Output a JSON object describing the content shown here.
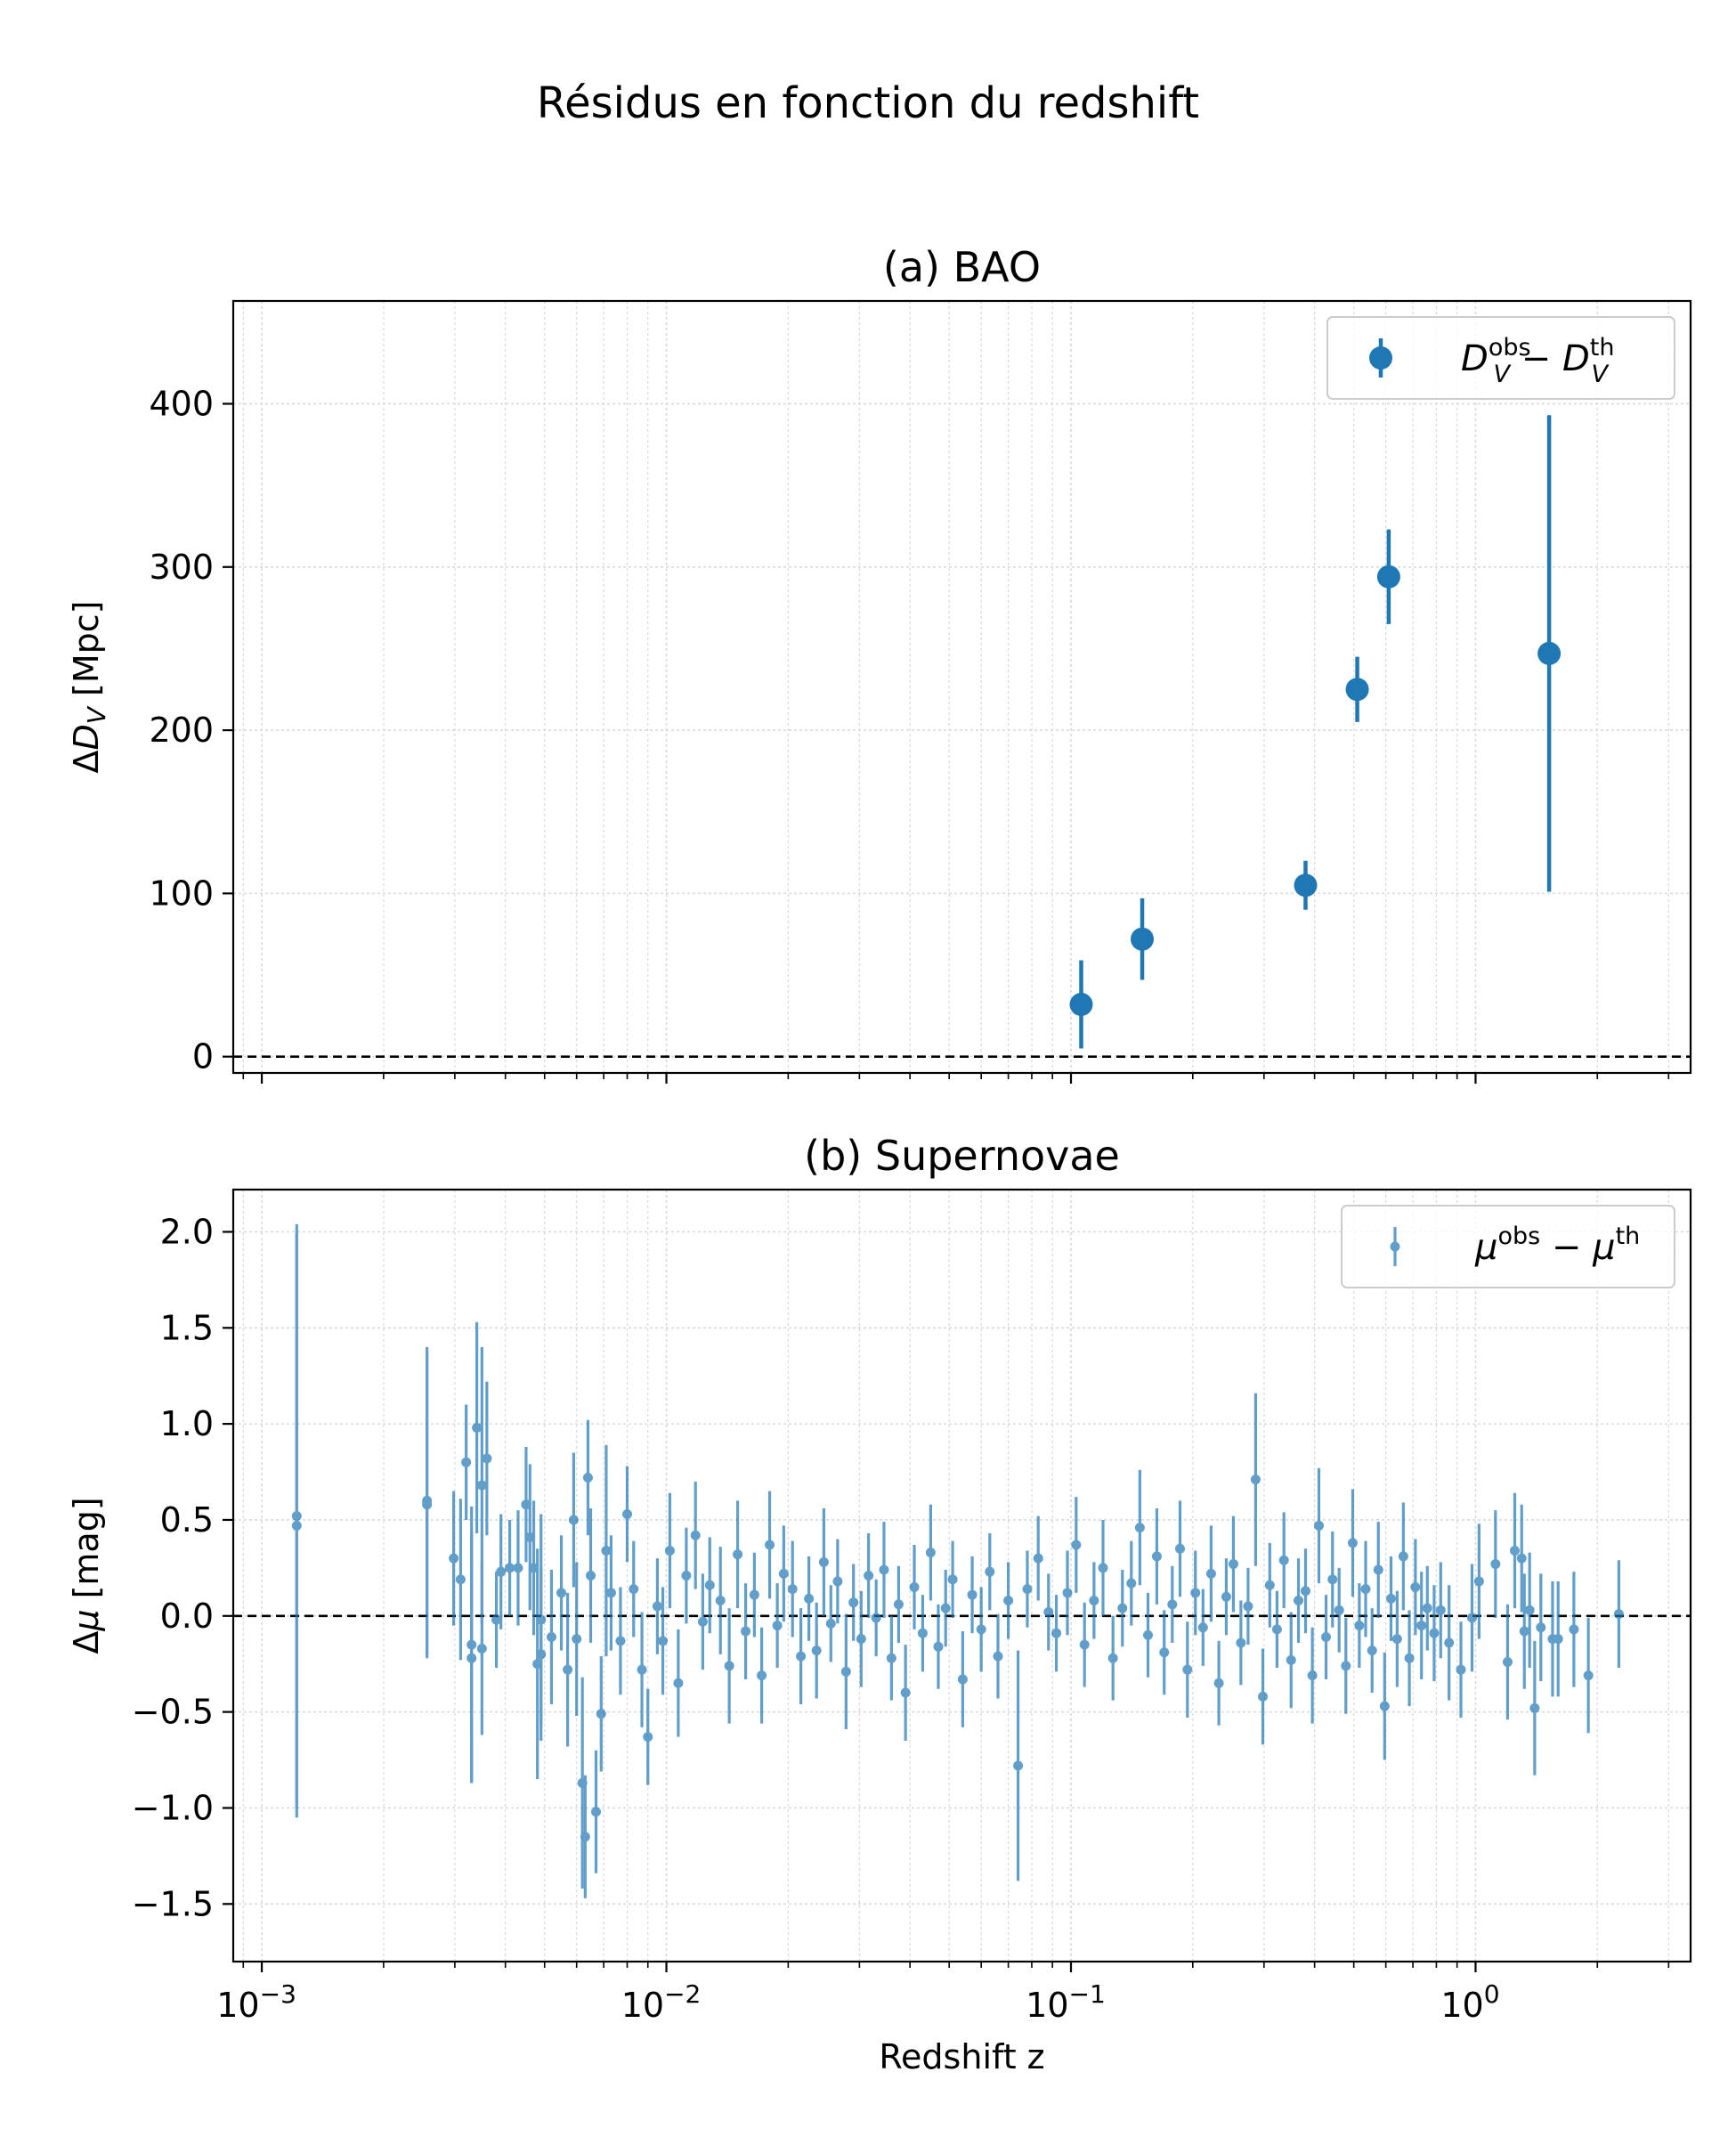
{
  "figure_title": "Résidus en fonction du redshift",
  "x_axis": {
    "label": "Redshift z",
    "scale": "log",
    "range": [
      0.00085,
      3.4
    ],
    "tick_labels": [
      "10−3",
      "10−2",
      "10−1",
      "100"
    ]
  },
  "colors": {
    "series": "#1f77b4",
    "zero_line": "#000000",
    "grid": "#d9d9d9"
  },
  "chart_data": [
    {
      "type": "scatter",
      "panel_title": "(a) BAO",
      "ylabel": "ΔD_V [Mpc]",
      "ylim": [
        -10,
        463
      ],
      "yticks": [
        0,
        100,
        200,
        300,
        400
      ],
      "ytick_labels": [
        "0",
        "100",
        "200",
        "300",
        "400"
      ],
      "grid": true,
      "zero_line": true,
      "legend": {
        "location": "top-right",
        "label": "D_V^obs − D_V^th"
      },
      "series": [
        {
          "name": "D_V^obs − D_V^th",
          "x": [
            0.106,
            0.15,
            0.38,
            0.51,
            0.61,
            1.52
          ],
          "y": [
            32,
            72,
            105,
            225,
            294,
            247
          ],
          "yerr": [
            27,
            25,
            15,
            20,
            29,
            146
          ]
        }
      ]
    },
    {
      "type": "scatter",
      "panel_title": "(b) Supernovae",
      "ylabel": "Δμ [mag]",
      "ylim": [
        -1.8,
        2.22
      ],
      "yticks": [
        -1.5,
        -1.0,
        -0.5,
        0.0,
        0.5,
        1.0,
        1.5,
        2.0
      ],
      "ytick_labels": [
        "−1.5",
        "−1.0",
        "−0.5",
        "0.0",
        "0.5",
        "1.0",
        "1.5",
        "2.0"
      ],
      "grid": true,
      "zero_line": true,
      "legend": {
        "location": "top-right",
        "label": "μ^obs − μ^th"
      },
      "series": [
        {
          "name": "μ^obs − μ^th",
          "x": [
            0.00122,
            0.00122,
            0.00256,
            0.00256,
            0.00298,
            0.0031,
            0.0032,
            0.0033,
            0.0033,
            0.0034,
            0.0035,
            0.0035,
            0.0036,
            0.0038,
            0.0039,
            0.0041,
            0.0043,
            0.0045,
            0.0046,
            0.0047,
            0.0048,
            0.0049,
            0.0049,
            0.0052,
            0.0055,
            0.0057,
            0.0059,
            0.006,
            0.0062,
            0.0063,
            0.0064,
            0.0065,
            0.0067,
            0.0069,
            0.0071,
            0.0073,
            0.0077,
            0.008,
            0.0083,
            0.0087,
            0.009,
            0.0095,
            0.0098,
            0.0102,
            0.0107,
            0.0112,
            0.0118,
            0.0123,
            0.0128,
            0.0136,
            0.0143,
            0.015,
            0.0157,
            0.0165,
            0.0172,
            0.018,
            0.0188,
            0.0195,
            0.0205,
            0.0215,
            0.0225,
            0.0235,
            0.0245,
            0.0255,
            0.0265,
            0.0278,
            0.029,
            0.0303,
            0.0316,
            0.033,
            0.0345,
            0.036,
            0.0375,
            0.039,
            0.041,
            0.043,
            0.045,
            0.047,
            0.049,
            0.051,
            0.054,
            0.057,
            0.06,
            0.063,
            0.066,
            0.07,
            0.074,
            0.078,
            0.083,
            0.088,
            0.092,
            0.098,
            0.103,
            0.108,
            0.114,
            0.12,
            0.127,
            0.134,
            0.141,
            0.148,
            0.155,
            0.163,
            0.17,
            0.178,
            0.186,
            0.194,
            0.203,
            0.212,
            0.222,
            0.232,
            0.242,
            0.252,
            0.263,
            0.274,
            0.286,
            0.298,
            0.31,
            0.323,
            0.336,
            0.35,
            0.365,
            0.38,
            0.395,
            0.41,
            0.427,
            0.443,
            0.46,
            0.478,
            0.497,
            0.516,
            0.535,
            0.555,
            0.575,
            0.596,
            0.618,
            0.64,
            0.663,
            0.686,
            0.71,
            0.735,
            0.76,
            0.79,
            0.82,
            0.86,
            0.92,
            0.98,
            1.02,
            1.12,
            1.2,
            1.25,
            1.3,
            1.32,
            1.36,
            1.4,
            1.45,
            1.55,
            1.6,
            1.75,
            1.9,
            2.26
          ],
          "y": [
            0.52,
            0.47,
            0.6,
            0.58,
            0.3,
            0.19,
            0.8,
            -0.15,
            -0.22,
            0.98,
            0.68,
            -0.17,
            0.82,
            -0.02,
            0.23,
            0.25,
            0.25,
            0.58,
            0.41,
            0.25,
            -0.25,
            -0.2,
            -0.02,
            -0.11,
            0.12,
            -0.28,
            0.5,
            -0.12,
            -0.87,
            -1.15,
            0.72,
            0.21,
            -1.02,
            -0.51,
            0.34,
            0.12,
            -0.13,
            0.53,
            0.14,
            -0.28,
            -0.63,
            0.05,
            -0.13,
            0.34,
            -0.35,
            0.21,
            0.42,
            -0.03,
            0.16,
            0.08,
            -0.26,
            0.32,
            -0.08,
            0.11,
            -0.31,
            0.37,
            -0.05,
            0.22,
            0.14,
            -0.21,
            0.09,
            -0.18,
            0.28,
            -0.04,
            0.18,
            -0.29,
            0.07,
            -0.12,
            0.21,
            -0.01,
            0.24,
            -0.22,
            0.06,
            -0.4,
            0.15,
            -0.09,
            0.33,
            -0.16,
            0.04,
            0.19,
            -0.33,
            0.11,
            -0.07,
            0.23,
            -0.21,
            0.08,
            -0.78,
            0.14,
            0.3,
            0.02,
            -0.09,
            0.12,
            0.37,
            -0.15,
            0.08,
            0.25,
            -0.22,
            0.04,
            0.17,
            0.46,
            -0.1,
            0.31,
            -0.19,
            0.06,
            0.35,
            -0.28,
            0.12,
            -0.06,
            0.22,
            -0.35,
            0.1,
            0.27,
            -0.14,
            0.05,
            0.71,
            -0.42,
            0.16,
            -0.07,
            0.29,
            -0.23,
            0.08,
            0.13,
            -0.31,
            0.47,
            -0.11,
            0.19,
            0.03,
            -0.26,
            0.38,
            -0.05,
            0.14,
            -0.18,
            0.24,
            -0.47,
            0.09,
            -0.12,
            0.31,
            -0.22,
            0.15,
            -0.05,
            0.04,
            -0.09,
            0.03,
            -0.14,
            -0.28,
            -0.01,
            0.18,
            0.27,
            -0.24,
            0.34,
            0.3,
            -0.08,
            0.03,
            -0.48,
            -0.06,
            -0.12,
            -0.12,
            -0.07,
            -0.31,
            0.01
          ],
          "yerr": [
            1.52,
            1.52,
            0.8,
            0.8,
            0.35,
            0.42,
            0.3,
            0.72,
            0.65,
            0.55,
            0.72,
            0.45,
            0.4,
            0.25,
            0.3,
            0.25,
            0.3,
            0.3,
            0.38,
            0.35,
            0.6,
            0.45,
            0.55,
            0.35,
            0.3,
            0.4,
            0.35,
            0.4,
            0.55,
            0.32,
            0.3,
            0.35,
            0.32,
            0.3,
            0.55,
            0.3,
            0.28,
            0.25,
            0.25,
            0.3,
            0.25,
            0.25,
            0.28,
            0.3,
            0.28,
            0.25,
            0.28,
            0.25,
            0.25,
            0.28,
            0.3,
            0.28,
            0.25,
            0.22,
            0.25,
            0.28,
            0.22,
            0.25,
            0.25,
            0.25,
            0.22,
            0.25,
            0.28,
            0.2,
            0.22,
            0.3,
            0.2,
            0.25,
            0.22,
            0.2,
            0.25,
            0.22,
            0.2,
            0.25,
            0.22,
            0.2,
            0.25,
            0.22,
            0.2,
            0.2,
            0.25,
            0.2,
            0.22,
            0.2,
            0.22,
            0.2,
            0.6,
            0.2,
            0.22,
            0.2,
            0.2,
            0.22,
            0.25,
            0.22,
            0.2,
            0.25,
            0.22,
            0.2,
            0.22,
            0.3,
            0.22,
            0.25,
            0.22,
            0.2,
            0.25,
            0.25,
            0.22,
            0.2,
            0.25,
            0.22,
            0.2,
            0.25,
            0.22,
            0.2,
            0.45,
            0.25,
            0.22,
            0.2,
            0.25,
            0.25,
            0.22,
            0.22,
            0.25,
            0.3,
            0.22,
            0.25,
            0.22,
            0.25,
            0.28,
            0.22,
            0.25,
            0.22,
            0.25,
            0.28,
            0.22,
            0.25,
            0.28,
            0.25,
            0.25,
            0.28,
            0.22,
            0.25,
            0.25,
            0.3,
            0.25,
            0.28,
            0.3,
            0.28,
            0.3,
            0.3,
            0.28,
            0.3,
            0.3,
            0.35,
            0.28,
            0.3,
            0.3,
            0.3,
            0.3,
            0.28
          ]
        }
      ]
    }
  ]
}
